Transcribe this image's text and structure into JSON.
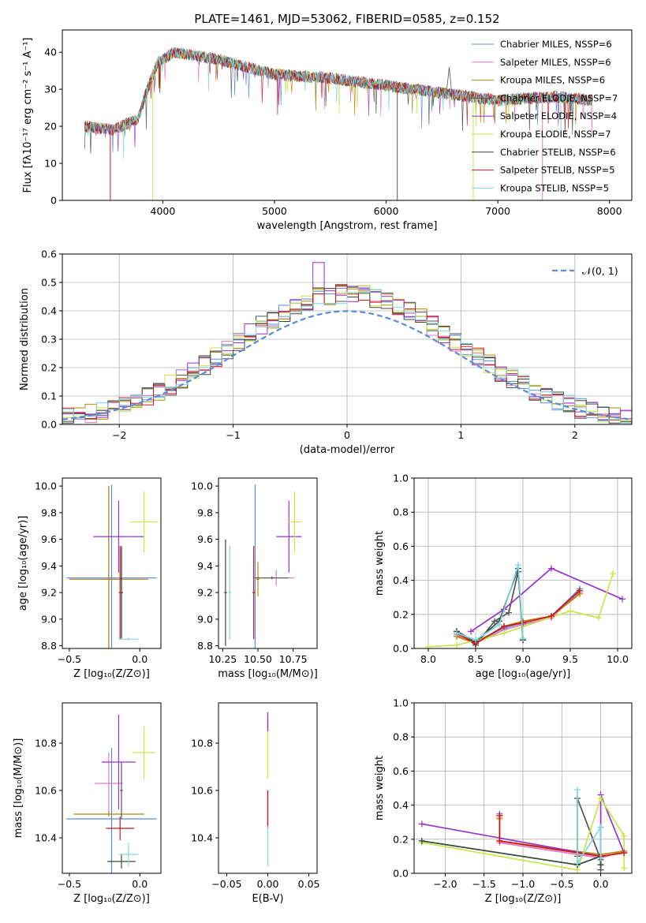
{
  "title": "PLATE=1461, MJD=53062, FIBERID=0585, z=0.152",
  "colors": [
    "#5b8bd9",
    "#e07bb8",
    "#b8860b",
    "#555555",
    "#9932cc",
    "#c8e64b",
    "#3a4a3a",
    "#cc1a1a",
    "#7fd6e0"
  ],
  "chart_data": [
    {
      "type": "line",
      "id": "spectrum",
      "xlabel": "wavelength [Angstrom, rest frame]",
      "ylabel": "Flux [fλ10⁻¹⁷ erg cm⁻² s⁻¹ A⁻¹]",
      "xlim": [
        3100,
        8200
      ],
      "ylim": [
        0,
        46
      ],
      "xticks": [
        4000,
        5000,
        6000,
        7000,
        8000
      ],
      "yticks": [
        0,
        10,
        20,
        30,
        40
      ],
      "legend_position": "top-right",
      "legend": [
        "Chabrier MILES, N_SSP=6",
        "Salpeter MILES, N_SSP=6",
        "Kroupa MILES, N_SSP=6",
        "Chabrier ELODIE, N_SSP=7",
        "Salpeter ELODIE, N_SSP=4",
        "Kroupa ELODIE, N_SSP=7",
        "Chabrier STELIB, N_SSP=6",
        "Salpeter STELIB, N_SSP=5",
        "Kroupa STELIB, N_SSP=5"
      ],
      "continuum": [
        [
          3300,
          20
        ],
        [
          3550,
          19
        ],
        [
          3780,
          22
        ],
        [
          3850,
          29
        ],
        [
          3950,
          37
        ],
        [
          4100,
          40
        ],
        [
          4500,
          38
        ],
        [
          5000,
          34
        ],
        [
          5500,
          33
        ],
        [
          6000,
          31
        ],
        [
          6500,
          29
        ],
        [
          7000,
          27
        ],
        [
          7500,
          28
        ],
        [
          7850,
          27
        ]
      ],
      "dropouts": [
        [
          3530,
          0
        ],
        [
          3910,
          0
        ],
        [
          6100,
          0
        ],
        [
          6780,
          0
        ],
        [
          7400,
          0
        ]
      ]
    },
    {
      "type": "histogram",
      "id": "residuals",
      "xlabel": "(data-model)/error",
      "ylabel": "Normed distribution",
      "xlim": [
        -2.5,
        2.5
      ],
      "ylim": [
        0,
        0.6
      ],
      "xticks": [
        -2,
        -1,
        0,
        1,
        2
      ],
      "yticks": [
        0.0,
        0.1,
        0.2,
        0.3,
        0.4,
        0.5,
        0.6
      ],
      "legend": [
        "𝒩(0, 1)"
      ],
      "legend_position": "top-right",
      "grid": true
    },
    {
      "type": "errorbar",
      "id": "age-vs-Z",
      "xlabel": "Z [log₁₀(Z/Z⊙)]",
      "ylabel": "age  [log₁₀(age/yr)]",
      "xlim": [
        -0.55,
        0.15
      ],
      "ylim": [
        8.78,
        10.06
      ],
      "xticks": [
        -0.5,
        0.0
      ],
      "yticks": [
        8.8,
        9.0,
        9.2,
        9.4,
        9.6,
        9.8,
        10.0
      ],
      "points": [
        {
          "x": -0.2,
          "y": 9.31,
          "xerr": 0.32,
          "yerr": 0.7
        },
        {
          "x": -0.22,
          "y": 9.3,
          "xerr": 0.05,
          "yerr": 0.7
        },
        {
          "x": -0.22,
          "y": 9.3,
          "xerr": 0.28,
          "yerr": 0.7
        },
        {
          "x": -0.13,
          "y": 9.2,
          "xerr": 0.01,
          "yerr": 0.35
        },
        {
          "x": -0.15,
          "y": 9.62,
          "xerr": 0.18,
          "yerr": 0.27
        },
        {
          "x": 0.03,
          "y": 9.73,
          "xerr": 0.1,
          "yerr": 0.23
        },
        {
          "x": -0.13,
          "y": 9.2,
          "xerr": 0.01,
          "yerr": 0.34
        },
        {
          "x": -0.14,
          "y": 9.2,
          "xerr": 0.01,
          "yerr": 0.35
        },
        {
          "x": -0.08,
          "y": 8.85,
          "xerr": 0.07,
          "yerr": 0.01
        }
      ]
    },
    {
      "type": "errorbar",
      "id": "age-vs-mass",
      "xlabel": "mass [log₁₀(M/M⊙)]",
      "xlim": [
        10.22,
        10.92
      ],
      "ylim": [
        8.78,
        10.06
      ],
      "xticks": [
        10.25,
        10.5,
        10.75
      ],
      "yticks": [
        8.8,
        9.0,
        9.2,
        9.4,
        9.6,
        9.8,
        10.0
      ],
      "points": [
        {
          "x": 10.48,
          "y": 9.31,
          "xerr": 0.01,
          "yerr": 0.7
        },
        {
          "x": 10.63,
          "y": 9.31,
          "xerr": 0.13,
          "yerr": 0.06
        },
        {
          "x": 10.5,
          "y": 9.3,
          "xerr": 0.01,
          "yerr": 0.13
        },
        {
          "x": 10.6,
          "y": 9.31,
          "xerr": 0.12,
          "yerr": 0.01
        },
        {
          "x": 10.72,
          "y": 9.62,
          "xerr": 0.09,
          "yerr": 0.27
        },
        {
          "x": 10.76,
          "y": 9.73,
          "xerr": 0.05,
          "yerr": 0.23
        },
        {
          "x": 10.27,
          "y": 9.2,
          "xerr": 0.01,
          "yerr": 0.4
        },
        {
          "x": 10.47,
          "y": 9.2,
          "xerr": 0.01,
          "yerr": 0.35
        },
        {
          "x": 10.3,
          "y": 9.2,
          "xerr": 0.01,
          "yerr": 0.35
        }
      ]
    },
    {
      "type": "line",
      "id": "mass-weight-vs-age",
      "xlabel": "age  [log₁₀(age/yr)]",
      "ylabel": "mass weight",
      "xlim": [
        7.85,
        10.15
      ],
      "ylim": [
        0,
        1
      ],
      "xticks": [
        8.0,
        8.5,
        9.0,
        9.5,
        10.0
      ],
      "yticks": [
        0.0,
        0.2,
        0.4,
        0.6,
        0.8,
        1.0
      ],
      "grid": true,
      "series": [
        {
          "values": [
            [
              8.3,
              0.1
            ],
            [
              8.5,
              0.04
            ],
            [
              8.8,
              0.12
            ],
            [
              9.0,
              0.15
            ],
            [
              9.3,
              0.19
            ],
            [
              9.6,
              0.35
            ]
          ]
        },
        {
          "values": [
            [
              8.3,
              0.08
            ],
            [
              8.5,
              0.03
            ],
            [
              8.8,
              0.11
            ],
            [
              9.0,
              0.14
            ],
            [
              9.3,
              0.18
            ],
            [
              9.6,
              0.33
            ]
          ]
        },
        {
          "values": [
            [
              8.3,
              0.07
            ],
            [
              8.5,
              0.03
            ],
            [
              8.8,
              0.13
            ],
            [
              9.0,
              0.16
            ],
            [
              9.3,
              0.19
            ],
            [
              9.6,
              0.32
            ]
          ]
        },
        {
          "values": [
            [
              8.3,
              0.1
            ],
            [
              8.5,
              0.02
            ],
            [
              8.7,
              0.16
            ],
            [
              8.85,
              0.21
            ],
            [
              8.95,
              0.45
            ],
            [
              9.0,
              0.05
            ]
          ]
        },
        {
          "values": [
            [
              8.45,
              0.1
            ],
            [
              8.8,
              0.23
            ],
            [
              9.3,
              0.47
            ],
            [
              10.05,
              0.29
            ]
          ]
        },
        {
          "values": [
            [
              8.0,
              0.01
            ],
            [
              8.3,
              0.02
            ],
            [
              8.6,
              0.06
            ],
            [
              8.8,
              0.09
            ],
            [
              9.5,
              0.22
            ],
            [
              9.8,
              0.18
            ],
            [
              9.95,
              0.44
            ]
          ]
        },
        {
          "values": [
            [
              8.3,
              0.1
            ],
            [
              8.5,
              0.04
            ],
            [
              8.75,
              0.16
            ],
            [
              8.95,
              0.47
            ],
            [
              9.0,
              0.05
            ]
          ]
        },
        {
          "values": [
            [
              8.3,
              0.09
            ],
            [
              8.5,
              0.03
            ],
            [
              8.8,
              0.13
            ],
            [
              9.0,
              0.15
            ],
            [
              9.3,
              0.19
            ],
            [
              9.6,
              0.34
            ]
          ]
        },
        {
          "values": [
            [
              8.3,
              0.09
            ],
            [
              8.5,
              0.05
            ],
            [
              8.75,
              0.14
            ],
            [
              8.95,
              0.49
            ],
            [
              9.0,
              0.06
            ]
          ]
        }
      ]
    },
    {
      "type": "errorbar",
      "id": "mass-vs-Z",
      "xlabel": "Z [log₁₀(Z/Z⊙)]",
      "ylabel": "mass [log₁₀(M/M⊙)]",
      "xlim": [
        -0.55,
        0.15
      ],
      "ylim": [
        10.25,
        10.97
      ],
      "xticks": [
        -0.5,
        0.0
      ],
      "yticks": [
        10.4,
        10.6,
        10.8
      ],
      "points": [
        {
          "x": -0.2,
          "y": 10.48,
          "xerr": 0.32,
          "yerr": 0.3
        },
        {
          "x": -0.22,
          "y": 10.63,
          "xerr": 0.1,
          "yerr": 0.13
        },
        {
          "x": -0.22,
          "y": 10.5,
          "xerr": 0.25,
          "yerr": 0.01
        },
        {
          "x": -0.13,
          "y": 10.6,
          "xerr": 0.01,
          "yerr": 0.12
        },
        {
          "x": -0.15,
          "y": 10.72,
          "xerr": 0.12,
          "yerr": 0.2
        },
        {
          "x": 0.03,
          "y": 10.76,
          "xerr": 0.08,
          "yerr": 0.11
        },
        {
          "x": -0.13,
          "y": 10.3,
          "xerr": 0.1,
          "yerr": 0.03
        },
        {
          "x": -0.14,
          "y": 10.44,
          "xerr": 0.1,
          "yerr": 0.05
        },
        {
          "x": -0.08,
          "y": 10.33,
          "xerr": 0.07,
          "yerr": 0.05
        }
      ]
    },
    {
      "type": "errorbar",
      "id": "mass-vs-ebv",
      "xlabel": "E(B-V)",
      "xlim": [
        -0.06,
        0.06
      ],
      "ylim": [
        10.25,
        10.97
      ],
      "xticks": [
        -0.05,
        0.0,
        0.05
      ],
      "yticks": [
        10.4,
        10.6,
        10.8
      ],
      "points": [
        {
          "x": 0.0,
          "y": 10.6,
          "xerr": 0,
          "yerr": 0.3
        }
      ]
    },
    {
      "type": "line",
      "id": "mass-weight-vs-Z",
      "xlabel": "Z [log₁₀(Z/Z⊙)]",
      "ylabel": "mass weight",
      "xlim": [
        -2.4,
        0.4
      ],
      "ylim": [
        0,
        1
      ],
      "xticks": [
        -2.0,
        -1.5,
        -1.0,
        -0.5,
        0.0
      ],
      "yticks": [
        0.0,
        0.2,
        0.4,
        0.6,
        0.8,
        1.0
      ],
      "grid": true,
      "series": [
        {
          "values": [
            [
              -1.3,
              0.35
            ],
            [
              -1.3,
              0.19
            ],
            [
              0.0,
              0.1
            ],
            [
              0.0,
              0.27
            ],
            [
              0.0,
              0.05
            ]
          ]
        },
        {
          "values": [
            [
              -1.3,
              0.33
            ],
            [
              -1.3,
              0.18
            ],
            [
              0.0,
              0.09
            ],
            [
              0.3,
              0.13
            ]
          ]
        },
        {
          "values": [
            [
              -1.3,
              0.32
            ],
            [
              -1.3,
              0.19
            ],
            [
              0.0,
              0.11
            ],
            [
              0.3,
              0.13
            ]
          ]
        },
        {
          "values": [
            [
              -0.3,
              0.1
            ],
            [
              -0.3,
              0.44
            ],
            [
              0.0,
              0.08
            ],
            [
              0.0,
              0.02
            ]
          ]
        },
        {
          "values": [
            [
              -2.3,
              0.29
            ],
            [
              0.0,
              0.1
            ],
            [
              0.0,
              0.46
            ],
            [
              0.3,
              0.12
            ]
          ]
        },
        {
          "values": [
            [
              -2.3,
              0.18
            ],
            [
              -0.3,
              0.02
            ],
            [
              0.0,
              0.44
            ],
            [
              0.3,
              0.22
            ],
            [
              0.3,
              0.03
            ]
          ]
        },
        {
          "values": [
            [
              -2.3,
              0.19
            ],
            [
              -0.3,
              0.05
            ],
            [
              0.0,
              0.1
            ],
            [
              0.0,
              0.05
            ]
          ]
        },
        {
          "values": [
            [
              -1.3,
              0.34
            ],
            [
              -1.3,
              0.19
            ],
            [
              0.0,
              0.1
            ],
            [
              0.3,
              0.12
            ]
          ]
        },
        {
          "values": [
            [
              -0.3,
              0.49
            ],
            [
              -0.3,
              0.06
            ],
            [
              0.0,
              0.27
            ],
            [
              0.0,
              0.09
            ]
          ]
        }
      ]
    }
  ]
}
